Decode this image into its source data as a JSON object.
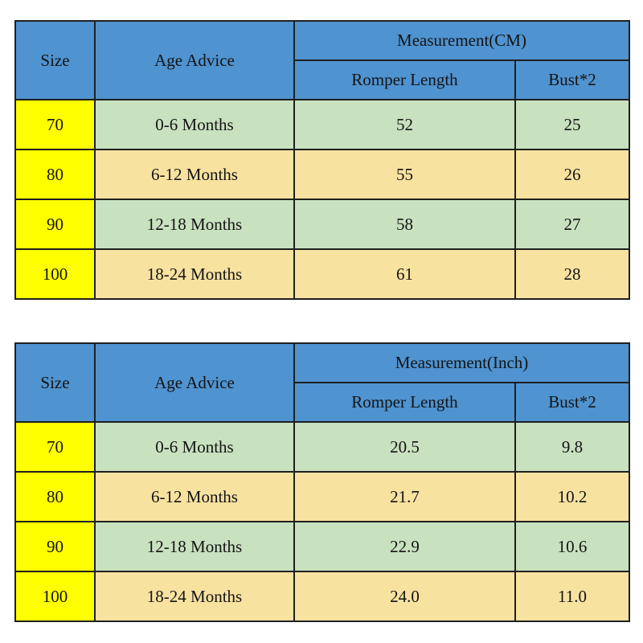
{
  "chart_data": [
    {
      "type": "table",
      "group_header": "Measurement(CM)",
      "columns": [
        "Size",
        "Age Advice",
        "Romper Length",
        "Bust*2"
      ],
      "rows": [
        [
          "70",
          "0-6 Months",
          "52",
          "25"
        ],
        [
          "80",
          "6-12 Months",
          "55",
          "26"
        ],
        [
          "90",
          "12-18 Months",
          "58",
          "27"
        ],
        [
          "100",
          "18-24 Months",
          "61",
          "28"
        ]
      ]
    },
    {
      "type": "table",
      "group_header": "Measurement(Inch)",
      "columns": [
        "Size",
        "Age Advice",
        "Romper Length",
        "Bust*2"
      ],
      "rows": [
        [
          "70",
          "0-6 Months",
          "20.5",
          "9.8"
        ],
        [
          "80",
          "6-12 Months",
          "21.7",
          "10.2"
        ],
        [
          "90",
          "12-18 Months",
          "22.9",
          "10.6"
        ],
        [
          "100",
          "18-24 Months",
          "24.0",
          "11.0"
        ]
      ]
    }
  ],
  "colors": {
    "header_blue": "#4f93d0",
    "size_column_yellow": "#ffff00",
    "row_green": "#c8e1bf",
    "row_tan": "#f8e2a0",
    "border": "#1f1f1f",
    "text": "#141414",
    "background": "#ffffff"
  }
}
